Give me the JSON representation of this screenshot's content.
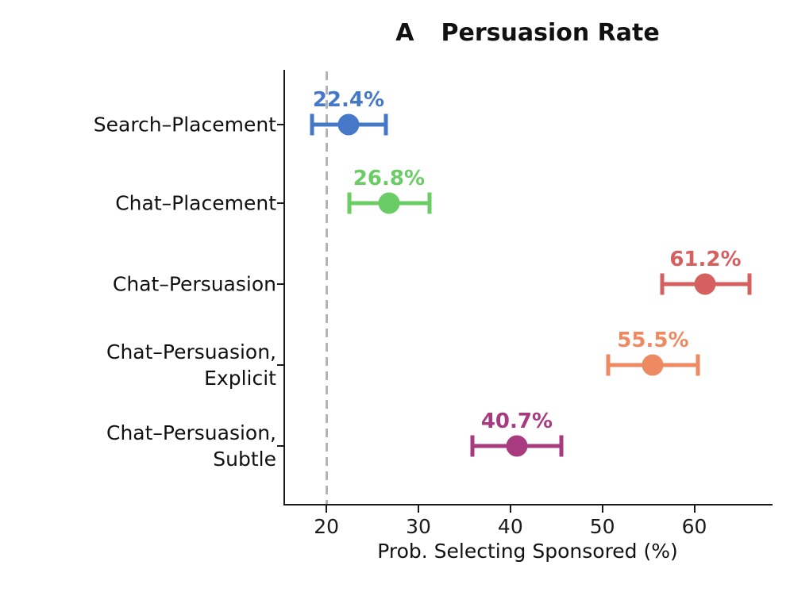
{
  "title": {
    "panel_label": "A",
    "text": "Persuasion Rate"
  },
  "chart_data": {
    "type": "scatter",
    "subtype": "dot-with-error-bars-horizontal",
    "title": "A  Persuasion Rate",
    "xlabel": "Prob. Selecting Sponsored (%)",
    "ylabel": "",
    "xlim": [
      15.5,
      68.5
    ],
    "xticks": [
      20,
      30,
      40,
      50,
      60
    ],
    "grid": false,
    "legend": "none",
    "baseline": {
      "value": 20,
      "style": "dashed",
      "color": "#b4b4b4"
    },
    "axis_color": "#1a1a1a",
    "categories": [
      "Search–Placement",
      "Chat–Placement",
      "Chat–Persuasion",
      "Chat–Persuasion,\nExplicit",
      "Chat–Persuasion,\nSubtle"
    ],
    "row_fractions": [
      0.126,
      0.308,
      0.494,
      0.68,
      0.866
    ],
    "series": [
      {
        "label": "Search–Placement",
        "value": 22.4,
        "display": "22.4%",
        "ci_low": 18.4,
        "ci_high": 26.5,
        "color": "#4678C8"
      },
      {
        "label": "Chat–Placement",
        "value": 26.8,
        "display": "26.8%",
        "ci_low": 22.5,
        "ci_high": 31.2,
        "color": "#6ACC65"
      },
      {
        "label": "Chat–Persuasion",
        "value": 61.2,
        "display": "61.2%",
        "ci_low": 56.5,
        "ci_high": 66.0,
        "color": "#D65F5F"
      },
      {
        "label": "Chat–Persuasion,\nExplicit",
        "value": 55.5,
        "display": "55.5%",
        "ci_low": 50.6,
        "ci_high": 60.4,
        "color": "#EE8A62"
      },
      {
        "label": "Chat–Persuasion,\nSubtle",
        "value": 40.7,
        "display": "40.7%",
        "ci_low": 35.9,
        "ci_high": 45.5,
        "color": "#A83A80"
      }
    ]
  }
}
